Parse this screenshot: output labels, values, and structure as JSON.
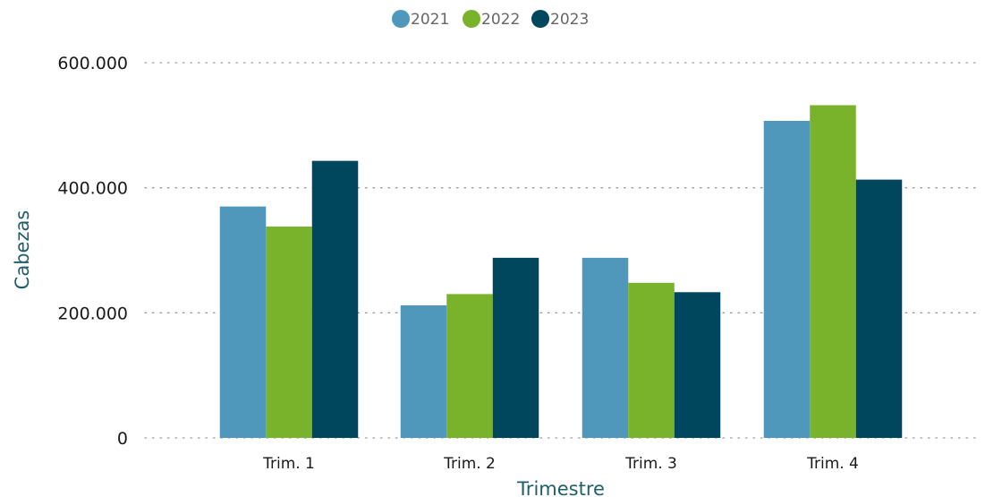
{
  "chart_data": {
    "type": "bar",
    "categories": [
      "Trim. 1",
      "Trim. 2",
      "Trim. 3",
      "Trim. 4"
    ],
    "series": [
      {
        "name": "2021",
        "color": "#4f98bc",
        "values": [
          370000,
          212000,
          288000,
          507000
        ]
      },
      {
        "name": "2022",
        "color": "#78b32b",
        "values": [
          338000,
          230000,
          248000,
          532000
        ]
      },
      {
        "name": "2023",
        "color": "#00465c",
        "values": [
          443000,
          288000,
          233000,
          413000
        ]
      }
    ],
    "xlabel": "Trimestre",
    "ylabel": "Cabezas",
    "ylim": [
      0,
      600000
    ],
    "yticks": [
      0,
      200000,
      400000,
      600000
    ],
    "ytick_labels": [
      "0",
      "200.000",
      "400.000",
      "600.000"
    ],
    "grid": true,
    "grid_style": "dotted",
    "legend_position": "top-center",
    "axis_title_color": "#1d5f6a"
  }
}
